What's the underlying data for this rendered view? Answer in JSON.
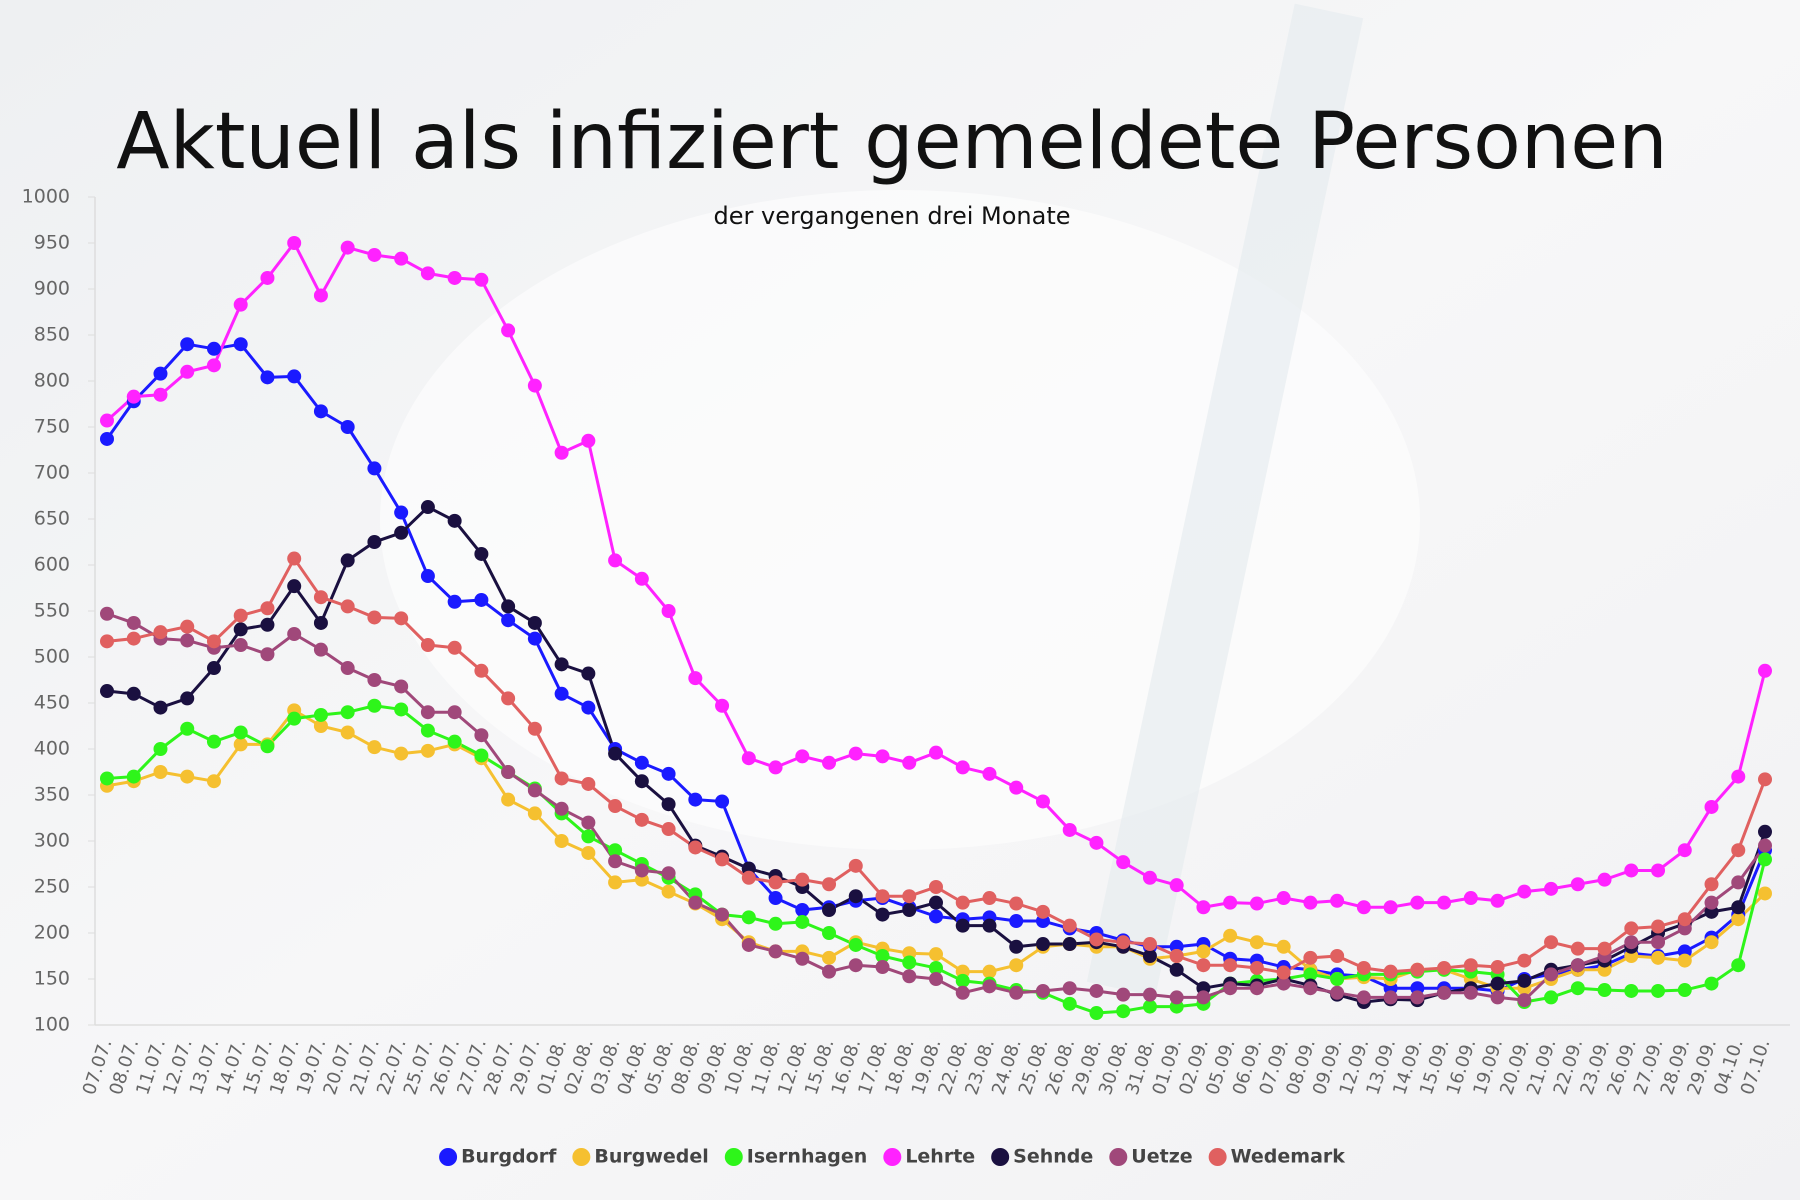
{
  "chart_data": {
    "type": "line",
    "title": "Aktuell als infiziert gemeldete Personen",
    "subtitle": "der vergangenen drei Monate",
    "categories": [
      "07.07.",
      "08.07.",
      "11.07.",
      "12.07.",
      "13.07.",
      "14.07.",
      "15.07.",
      "18.07.",
      "19.07.",
      "20.07.",
      "21.07.",
      "22.07.",
      "25.07.",
      "26.07.",
      "27.07.",
      "28.07.",
      "29.07.",
      "01.08.",
      "02.08.",
      "03.08.",
      "04.08.",
      "05.08.",
      "08.08.",
      "09.08.",
      "10.08.",
      "11.08.",
      "12.08.",
      "15.08.",
      "16.08.",
      "17.08.",
      "18.08.",
      "19.08.",
      "22.08.",
      "23.08.",
      "24.08.",
      "25.08.",
      "26.08.",
      "29.08.",
      "30.08.",
      "31.08.",
      "01.09.",
      "02.09.",
      "05.09.",
      "06.09.",
      "07.09.",
      "08.09.",
      "09.09.",
      "12.09.",
      "13.09.",
      "14.09.",
      "15.09.",
      "16.09.",
      "19.09.",
      "20.09.",
      "21.09.",
      "22.09.",
      "23.09.",
      "26.09.",
      "27.09.",
      "28.09.",
      "29.09.",
      "04.10.",
      "07.10."
    ],
    "ylim": [
      100,
      1000
    ],
    "yticks": [
      100,
      150,
      200,
      250,
      300,
      350,
      400,
      450,
      500,
      550,
      600,
      650,
      700,
      750,
      800,
      850,
      900,
      950,
      1000
    ],
    "series": [
      {
        "name": "Burgdorf",
        "color": "#1a1aff",
        "values": [
          737,
          778,
          808,
          840,
          835,
          840,
          804,
          805,
          767,
          750,
          705,
          657,
          588,
          560,
          562,
          540,
          520,
          460,
          445,
          400,
          385,
          373,
          345,
          343,
          270,
          238,
          225,
          228,
          235,
          238,
          228,
          218,
          215,
          217,
          213,
          213,
          205,
          200,
          192,
          185,
          185,
          188,
          172,
          170,
          163,
          160,
          155,
          153,
          140,
          140,
          140,
          140,
          137,
          150,
          155,
          160,
          165,
          178,
          175,
          180,
          195,
          220,
          290
        ]
      },
      {
        "name": "Burgwedel",
        "color": "#f5c030",
        "values": [
          360,
          365,
          375,
          370,
          365,
          405,
          405,
          442,
          425,
          418,
          402,
          395,
          398,
          405,
          390,
          345,
          330,
          300,
          287,
          255,
          258,
          245,
          232,
          215,
          190,
          180,
          180,
          173,
          190,
          183,
          178,
          177,
          158,
          158,
          165,
          185,
          188,
          185,
          185,
          172,
          175,
          180,
          197,
          190,
          185,
          160,
          150,
          152,
          150,
          160,
          160,
          150,
          140,
          140,
          150,
          160,
          160,
          175,
          173,
          170,
          190,
          215,
          243
        ]
      },
      {
        "name": "Isernhagen",
        "color": "#2ef51a",
        "values": [
          368,
          370,
          400,
          422,
          408,
          418,
          403,
          433,
          437,
          440,
          447,
          443,
          420,
          408,
          393,
          375,
          357,
          330,
          305,
          290,
          275,
          260,
          242,
          220,
          217,
          210,
          212,
          200,
          187,
          175,
          168,
          162,
          148,
          145,
          138,
          135,
          123,
          113,
          115,
          120,
          120,
          123,
          145,
          148,
          150,
          155,
          150,
          155,
          155,
          158,
          160,
          158,
          155,
          125,
          130,
          140,
          138,
          137,
          137,
          138,
          145,
          165,
          280
        ]
      },
      {
        "name": "Lehrte",
        "color": "#ff22ff",
        "values": [
          757,
          783,
          785,
          810,
          817,
          883,
          912,
          950,
          893,
          945,
          937,
          933,
          917,
          912,
          910,
          855,
          795,
          722,
          735,
          605,
          585,
          550,
          477,
          447,
          390,
          380,
          392,
          385,
          395,
          392,
          385,
          396,
          380,
          373,
          358,
          343,
          312,
          298,
          277,
          260,
          252,
          228,
          233,
          232,
          238,
          233,
          235,
          228,
          228,
          233,
          233,
          238,
          235,
          245,
          248,
          253,
          258,
          268,
          268,
          290,
          337,
          370,
          485
        ]
      },
      {
        "name": "Sehnde",
        "color": "#1a1040",
        "values": [
          463,
          460,
          445,
          455,
          488,
          530,
          535,
          577,
          537,
          605,
          625,
          635,
          663,
          648,
          612,
          555,
          537,
          492,
          482,
          395,
          365,
          340,
          295,
          283,
          270,
          262,
          250,
          225,
          240,
          220,
          225,
          233,
          208,
          208,
          185,
          188,
          188,
          190,
          185,
          175,
          160,
          140,
          145,
          143,
          150,
          143,
          133,
          125,
          128,
          127,
          135,
          140,
          145,
          148,
          160,
          165,
          170,
          185,
          200,
          210,
          223,
          228,
          310
        ]
      },
      {
        "name": "Uetze",
        "color": "#a0487a",
        "values": [
          547,
          537,
          520,
          518,
          510,
          513,
          503,
          525,
          508,
          488,
          475,
          468,
          440,
          440,
          415,
          375,
          355,
          335,
          320,
          278,
          268,
          265,
          233,
          220,
          187,
          180,
          172,
          158,
          165,
          163,
          153,
          150,
          135,
          142,
          135,
          137,
          140,
          137,
          133,
          133,
          130,
          130,
          140,
          140,
          145,
          140,
          135,
          130,
          130,
          130,
          135,
          135,
          130,
          127,
          155,
          165,
          175,
          190,
          190,
          205,
          233,
          255,
          295
        ]
      },
      {
        "name": "Wedemark",
        "color": "#e06060",
        "values": [
          517,
          520,
          527,
          533,
          517,
          545,
          553,
          607,
          565,
          555,
          543,
          542,
          513,
          510,
          485,
          455,
          422,
          368,
          362,
          338,
          323,
          313,
          293,
          280,
          260,
          255,
          258,
          253,
          273,
          240,
          240,
          250,
          233,
          238,
          232,
          223,
          208,
          193,
          190,
          188,
          175,
          165,
          165,
          162,
          157,
          173,
          175,
          162,
          158,
          160,
          162,
          165,
          163,
          170,
          190,
          183,
          183,
          205,
          207,
          215,
          253,
          290,
          367
        ]
      }
    ]
  }
}
